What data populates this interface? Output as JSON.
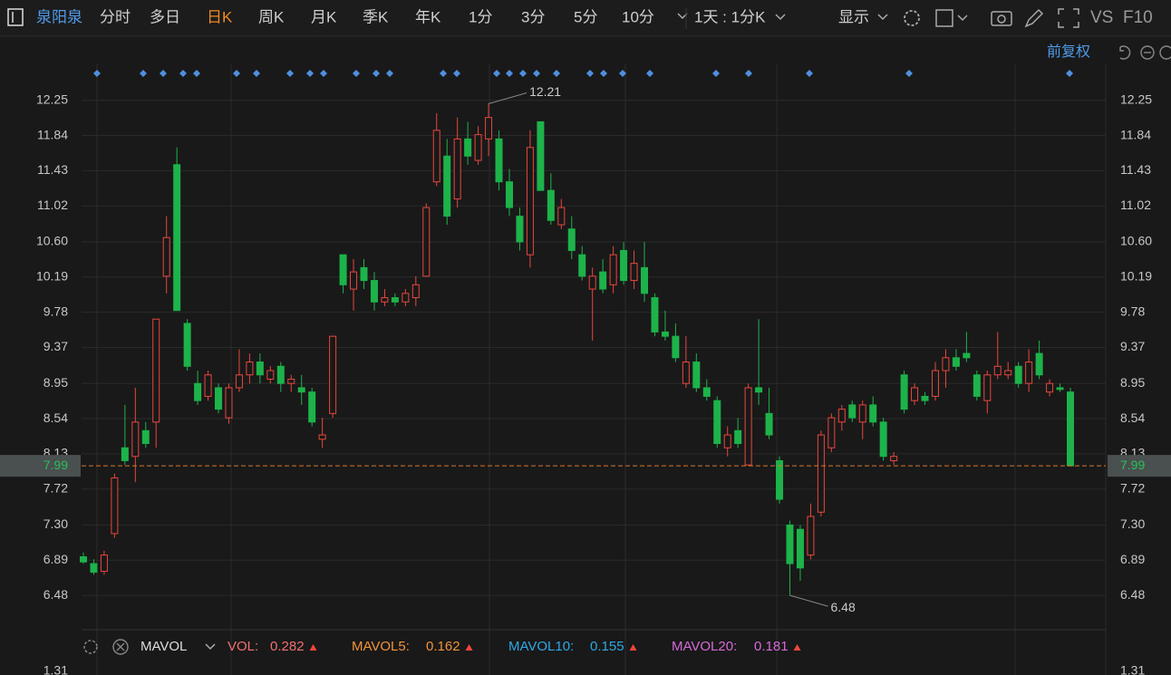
{
  "toolbar": {
    "stock": "泉阳泉",
    "tabs": [
      "分时",
      "多日",
      "日K",
      "周K",
      "月K",
      "季K",
      "年K",
      "1分",
      "3分",
      "5分",
      "10分"
    ],
    "active_tab": 2,
    "period": "1天 : 1分K",
    "display": "显示",
    "vs": "VS",
    "f10": "F10",
    "adjust": "前复权"
  },
  "chart_data": {
    "type": "candlestick",
    "up_color": "#e8473d",
    "down_color": "#1db34a",
    "candles": [
      [
        6.93,
        6.98,
        6.85,
        6.87
      ],
      [
        6.85,
        6.9,
        6.72,
        6.75
      ],
      [
        6.76,
        7.0,
        6.72,
        6.95
      ],
      [
        7.2,
        7.9,
        7.15,
        7.85
      ],
      [
        8.2,
        8.7,
        8.0,
        8.05
      ],
      [
        8.1,
        8.9,
        7.8,
        8.5
      ],
      [
        8.4,
        8.5,
        8.2,
        8.25
      ],
      [
        8.5,
        9.7,
        8.2,
        9.7
      ],
      [
        10.2,
        10.9,
        10.0,
        10.65
      ],
      [
        11.5,
        11.7,
        9.8,
        9.8
      ],
      [
        9.65,
        9.7,
        9.1,
        9.15
      ],
      [
        8.95,
        9.1,
        8.7,
        8.75
      ],
      [
        8.8,
        9.1,
        8.75,
        9.05
      ],
      [
        8.9,
        8.95,
        8.6,
        8.65
      ],
      [
        8.55,
        8.95,
        8.48,
        8.9
      ],
      [
        8.9,
        9.35,
        8.85,
        9.05
      ],
      [
        9.05,
        9.3,
        8.95,
        9.2
      ],
      [
        9.2,
        9.3,
        8.95,
        9.05
      ],
      [
        9.0,
        9.15,
        8.95,
        9.1
      ],
      [
        9.15,
        9.2,
        8.85,
        8.95
      ],
      [
        8.95,
        9.05,
        8.85,
        9.0
      ],
      [
        8.9,
        9.05,
        8.7,
        8.85
      ],
      [
        8.85,
        8.9,
        8.45,
        8.5
      ],
      [
        8.3,
        8.55,
        8.2,
        8.35
      ],
      [
        8.6,
        9.5,
        8.55,
        9.5
      ],
      [
        10.45,
        10.45,
        10.0,
        10.1
      ],
      [
        10.05,
        10.4,
        9.8,
        10.25
      ],
      [
        10.3,
        10.4,
        10.05,
        10.15
      ],
      [
        10.15,
        10.25,
        9.8,
        9.9
      ],
      [
        9.9,
        10.05,
        9.85,
        9.95
      ],
      [
        9.95,
        10.0,
        9.85,
        9.9
      ],
      [
        9.9,
        10.05,
        9.85,
        10.0
      ],
      [
        9.95,
        10.2,
        9.85,
        10.1
      ],
      [
        10.2,
        11.05,
        10.2,
        11.0
      ],
      [
        11.3,
        12.1,
        11.25,
        11.9
      ],
      [
        11.6,
        11.8,
        10.8,
        10.9
      ],
      [
        11.1,
        12.05,
        11.0,
        11.8
      ],
      [
        11.8,
        12.0,
        11.5,
        11.6
      ],
      [
        11.55,
        11.95,
        11.5,
        11.85
      ],
      [
        11.8,
        12.21,
        11.6,
        12.05
      ],
      [
        11.8,
        11.9,
        11.2,
        11.3
      ],
      [
        11.3,
        11.45,
        10.9,
        11.0
      ],
      [
        10.9,
        11.0,
        10.5,
        10.6
      ],
      [
        10.45,
        11.9,
        10.3,
        11.7
      ],
      [
        12.0,
        12.0,
        11.2,
        11.2
      ],
      [
        11.2,
        11.4,
        10.8,
        10.85
      ],
      [
        10.8,
        11.1,
        10.75,
        11.0
      ],
      [
        10.75,
        10.9,
        10.4,
        10.5
      ],
      [
        10.45,
        10.55,
        10.15,
        10.2
      ],
      [
        10.05,
        10.3,
        9.45,
        10.2
      ],
      [
        10.25,
        10.4,
        10.0,
        10.05
      ],
      [
        10.1,
        10.55,
        10.0,
        10.45
      ],
      [
        10.5,
        10.6,
        10.1,
        10.15
      ],
      [
        10.15,
        10.5,
        10.05,
        10.35
      ],
      [
        10.3,
        10.6,
        9.9,
        10.0
      ],
      [
        9.95,
        10.0,
        9.5,
        9.55
      ],
      [
        9.55,
        9.8,
        9.45,
        9.5
      ],
      [
        9.5,
        9.65,
        9.2,
        9.25
      ],
      [
        8.95,
        9.5,
        8.9,
        9.2
      ],
      [
        9.2,
        9.3,
        8.85,
        8.9
      ],
      [
        8.9,
        9.0,
        8.75,
        8.8
      ],
      [
        8.75,
        8.8,
        8.2,
        8.25
      ],
      [
        8.2,
        8.45,
        8.1,
        8.35
      ],
      [
        8.4,
        8.55,
        8.2,
        8.25
      ],
      [
        8.0,
        8.95,
        8.0,
        8.9
      ],
      [
        8.9,
        9.7,
        8.7,
        8.85
      ],
      [
        8.6,
        8.9,
        8.3,
        8.35
      ],
      [
        8.05,
        8.1,
        7.55,
        7.6
      ],
      [
        7.3,
        7.35,
        6.48,
        6.85
      ],
      [
        7.25,
        7.3,
        6.65,
        6.8
      ],
      [
        6.95,
        7.55,
        6.9,
        7.4
      ],
      [
        7.45,
        8.4,
        7.4,
        8.35
      ],
      [
        8.2,
        8.6,
        8.15,
        8.55
      ],
      [
        8.5,
        8.7,
        8.4,
        8.65
      ],
      [
        8.7,
        8.75,
        8.5,
        8.55
      ],
      [
        8.5,
        8.75,
        8.3,
        8.7
      ],
      [
        8.7,
        8.8,
        8.45,
        8.5
      ],
      [
        8.5,
        8.55,
        8.05,
        8.1
      ],
      [
        8.05,
        8.15,
        8.0,
        8.1
      ],
      [
        9.05,
        9.1,
        8.6,
        8.65
      ],
      [
        8.75,
        8.95,
        8.7,
        8.9
      ],
      [
        8.8,
        8.85,
        8.7,
        8.75
      ],
      [
        8.8,
        9.2,
        8.75,
        9.1
      ],
      [
        9.1,
        9.35,
        8.9,
        9.25
      ],
      [
        9.25,
        9.35,
        9.1,
        9.15
      ],
      [
        9.3,
        9.55,
        9.2,
        9.25
      ],
      [
        9.05,
        9.1,
        8.75,
        8.8
      ],
      [
        8.75,
        9.1,
        8.6,
        9.05
      ],
      [
        9.05,
        9.55,
        9.0,
        9.15
      ],
      [
        9.05,
        9.2,
        9.0,
        9.1
      ],
      [
        9.15,
        9.2,
        8.9,
        8.95
      ],
      [
        8.95,
        9.35,
        8.85,
        9.2
      ],
      [
        9.3,
        9.45,
        9.0,
        9.05
      ],
      [
        8.85,
        9.0,
        8.8,
        8.95
      ],
      [
        8.9,
        8.95,
        8.85,
        8.88
      ],
      [
        8.85,
        8.9,
        7.99,
        7.99
      ]
    ],
    "ylim": [
      6.08,
      12.49
    ],
    "yticks": [
      12.25,
      11.84,
      11.43,
      11.02,
      {
        "value": 10.6,
        "label": "10.60"
      },
      10.19,
      9.78,
      9.37,
      8.95,
      8.54,
      8.13,
      7.72,
      {
        "value": 7.3,
        "label": "7.30"
      },
      6.89,
      6.48
    ],
    "high_label": 12.21,
    "low_label": 6.48,
    "last_price": 7.99,
    "last_price_color": "#d9782d"
  },
  "indicator": {
    "name": "MAVOL",
    "items": [
      {
        "name": "VOL:",
        "value": 0.282,
        "color": "#f07070"
      },
      {
        "name": "MAVOL5:",
        "value": 0.162,
        "color": "#f0933a"
      },
      {
        "name": "MAVOL10:",
        "value": 0.155,
        "color": "#2fa8e6"
      },
      {
        "name": "MAVOL20:",
        "value": 0.181,
        "color": "#d56ad8"
      }
    ],
    "top_tick": 1.31
  }
}
